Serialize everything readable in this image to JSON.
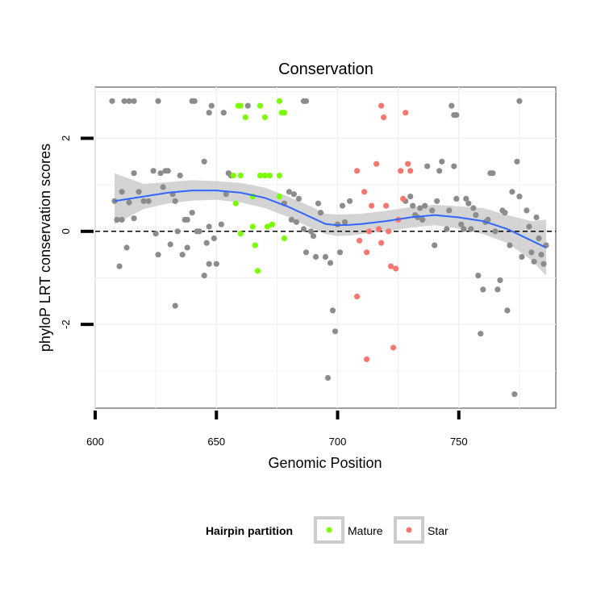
{
  "chart_data": {
    "type": "scatter",
    "title": "Conservation",
    "xlabel": "Genomic Position",
    "ylabel": "phyloP LRT conservation scores",
    "xlim": [
      600,
      790
    ],
    "ylim": [
      -3.8,
      3.1
    ],
    "x_ticks": [
      600,
      650,
      700,
      750
    ],
    "y_ticks": [
      -2,
      0,
      2
    ],
    "x_tick_labels": [
      "600",
      "650",
      "700",
      "750"
    ],
    "y_tick_labels": [
      "-2",
      "0",
      "2"
    ],
    "reference_line": 0,
    "grid": true,
    "legend": {
      "title": "Hairpin partition",
      "position": "bottom",
      "entries": [
        {
          "label": "Mature",
          "color": "#7CFC00"
        },
        {
          "label": "Star",
          "color": "#F8766D"
        }
      ]
    },
    "colors": {
      "other": "#8C8C8C",
      "Mature": "#7CFC00",
      "Star": "#F8766D",
      "smooth": "#3366FF",
      "band": "#CCCCCC"
    },
    "series": [
      {
        "name": "Other",
        "color": "#8C8C8C",
        "points": [
          [
            607,
            2.8
          ],
          [
            612,
            2.8
          ],
          [
            614,
            2.8
          ],
          [
            616,
            2.8
          ],
          [
            626,
            2.8
          ],
          [
            640,
            2.8
          ],
          [
            641,
            2.8
          ],
          [
            686,
            2.8
          ],
          [
            687,
            2.8
          ],
          [
            747,
            2.7
          ],
          [
            775,
            2.8
          ],
          [
            647,
            2.55
          ],
          [
            653,
            2.55
          ],
          [
            648,
            2.7
          ],
          [
            663,
            2.7
          ],
          [
            748,
            2.5
          ],
          [
            749,
            2.5
          ],
          [
            608,
            0.65
          ],
          [
            609,
            0.25
          ],
          [
            611,
            0.25
          ],
          [
            611,
            0.85
          ],
          [
            613,
            -0.35
          ],
          [
            614,
            0.62
          ],
          [
            616,
            0.28
          ],
          [
            616,
            1.25
          ],
          [
            618,
            0.85
          ],
          [
            620,
            0.65
          ],
          [
            622,
            0.65
          ],
          [
            624,
            1.3
          ],
          [
            625,
            -0.05
          ],
          [
            626,
            -0.5
          ],
          [
            627,
            1.25
          ],
          [
            628,
            0.95
          ],
          [
            629,
            1.3
          ],
          [
            630,
            1.3
          ],
          [
            631,
            -0.28
          ],
          [
            632,
            0.8
          ],
          [
            633,
            0.65
          ],
          [
            634,
            0.0
          ],
          [
            635,
            1.2
          ],
          [
            636,
            -0.5
          ],
          [
            637,
            0.25
          ],
          [
            638,
            0.25
          ],
          [
            638,
            -0.35
          ],
          [
            640,
            0.4
          ],
          [
            642,
            0.0
          ],
          [
            643,
            0.0
          ],
          [
            645,
            1.5
          ],
          [
            646,
            -0.25
          ],
          [
            647,
            0.1
          ],
          [
            647,
            -0.7
          ],
          [
            649,
            -0.15
          ],
          [
            650,
            -0.7
          ],
          [
            652,
            0.15
          ],
          [
            654,
            0.8
          ],
          [
            655,
            1.25
          ],
          [
            656,
            1.2
          ],
          [
            610,
            -0.75
          ],
          [
            633,
            -1.6
          ],
          [
            645,
            -0.95
          ],
          [
            678,
            0.6
          ],
          [
            680,
            0.85
          ],
          [
            681,
            0.25
          ],
          [
            682,
            0.8
          ],
          [
            683,
            0.2
          ],
          [
            684,
            0.7
          ],
          [
            686,
            0.05
          ],
          [
            687,
            -0.45
          ],
          [
            689,
            0.0
          ],
          [
            690,
            -0.1
          ],
          [
            691,
            -0.55
          ],
          [
            692,
            0.6
          ],
          [
            693,
            0.4
          ],
          [
            695,
            -0.55
          ],
          [
            697,
            -0.68
          ],
          [
            698,
            -1.7
          ],
          [
            699,
            -2.15
          ],
          [
            696,
            -3.15
          ],
          [
            700,
            0.15
          ],
          [
            701,
            -0.45
          ],
          [
            702,
            0.55
          ],
          [
            703,
            0.2
          ],
          [
            705,
            0.65
          ],
          [
            728,
            0.65
          ],
          [
            730,
            0.75
          ],
          [
            731,
            0.55
          ],
          [
            732,
            0.35
          ],
          [
            733,
            0.3
          ],
          [
            734,
            0.5
          ],
          [
            735,
            0.25
          ],
          [
            736,
            0.55
          ],
          [
            737,
            1.4
          ],
          [
            739,
            0.45
          ],
          [
            740,
            -0.3
          ],
          [
            741,
            0.65
          ],
          [
            742,
            1.3
          ],
          [
            743,
            1.5
          ],
          [
            745,
            0.05
          ],
          [
            746,
            0.45
          ],
          [
            748,
            1.4
          ],
          [
            749,
            0.7
          ],
          [
            751,
            0.15
          ],
          [
            752,
            0.05
          ],
          [
            753,
            0.7
          ],
          [
            754,
            0.6
          ],
          [
            755,
            0.05
          ],
          [
            756,
            0.5
          ],
          [
            757,
            0.35
          ],
          [
            758,
            -0.95
          ],
          [
            759,
            -2.2
          ],
          [
            760,
            -1.25
          ],
          [
            761,
            0.2
          ],
          [
            762,
            0.25
          ],
          [
            763,
            1.25
          ],
          [
            764,
            1.25
          ],
          [
            765,
            0.0
          ],
          [
            766,
            -1.25
          ],
          [
            767,
            -1.05
          ],
          [
            768,
            0.45
          ],
          [
            769,
            0.4
          ],
          [
            770,
            -1.7
          ],
          [
            771,
            -0.3
          ],
          [
            772,
            0.85
          ],
          [
            773,
            -3.5
          ],
          [
            774,
            1.5
          ],
          [
            775,
            0.75
          ],
          [
            776,
            -0.55
          ],
          [
            778,
            0.45
          ],
          [
            779,
            0.1
          ],
          [
            780,
            -0.45
          ],
          [
            781,
            -0.65
          ],
          [
            782,
            0.3
          ],
          [
            783,
            -0.15
          ],
          [
            784,
            -0.5
          ],
          [
            785,
            -0.7
          ],
          [
            786,
            -0.3
          ]
        ]
      },
      {
        "name": "Mature",
        "color": "#7CFC00",
        "points": [
          [
            659,
            2.7
          ],
          [
            660,
            2.7
          ],
          [
            668,
            2.7
          ],
          [
            676,
            2.8
          ],
          [
            662,
            2.45
          ],
          [
            670,
            2.45
          ],
          [
            677,
            2.55
          ],
          [
            678,
            2.55
          ],
          [
            657,
            1.2
          ],
          [
            660,
            1.2
          ],
          [
            668,
            1.2
          ],
          [
            670,
            1.2
          ],
          [
            672,
            1.2
          ],
          [
            676,
            1.2
          ],
          [
            665,
            0.75
          ],
          [
            676,
            0.75
          ],
          [
            658,
            0.6
          ],
          [
            665,
            0.1
          ],
          [
            671,
            0.1
          ],
          [
            673,
            0.15
          ],
          [
            660,
            -0.05
          ],
          [
            666,
            -0.3
          ],
          [
            678,
            -0.15
          ],
          [
            667,
            -0.85
          ]
        ]
      },
      {
        "name": "Star",
        "color": "#F8766D",
        "points": [
          [
            718,
            2.7
          ],
          [
            719,
            2.45
          ],
          [
            728,
            2.55
          ],
          [
            708,
            1.3
          ],
          [
            716,
            1.45
          ],
          [
            726,
            1.3
          ],
          [
            729,
            1.45
          ],
          [
            730,
            1.3
          ],
          [
            711,
            0.85
          ],
          [
            714,
            0.55
          ],
          [
            720,
            0.55
          ],
          [
            727,
            0.7
          ],
          [
            713,
            0.0
          ],
          [
            717,
            0.05
          ],
          [
            721,
            0.0
          ],
          [
            725,
            0.25
          ],
          [
            709,
            -0.2
          ],
          [
            712,
            -0.45
          ],
          [
            718,
            -0.25
          ],
          [
            722,
            -0.75
          ],
          [
            724,
            -0.8
          ],
          [
            708,
            -1.4
          ],
          [
            712,
            -2.75
          ],
          [
            723,
            -2.5
          ]
        ]
      }
    ],
    "smooth": {
      "x": [
        608,
        620,
        630,
        640,
        650,
        660,
        670,
        680,
        690,
        695,
        700,
        705,
        710,
        720,
        730,
        740,
        750,
        760,
        770,
        780,
        786
      ],
      "y": [
        0.65,
        0.75,
        0.83,
        0.88,
        0.88,
        0.83,
        0.72,
        0.52,
        0.28,
        0.16,
        0.13,
        0.14,
        0.16,
        0.22,
        0.3,
        0.35,
        0.3,
        0.22,
        0.05,
        -0.2,
        -0.35
      ],
      "lower": [
        0.15,
        0.48,
        0.6,
        0.66,
        0.68,
        0.62,
        0.5,
        0.3,
        0.05,
        -0.06,
        -0.1,
        -0.09,
        -0.06,
        0.0,
        0.08,
        0.13,
        0.06,
        -0.06,
        -0.25,
        -0.62,
        -0.95
      ],
      "upper": [
        1.25,
        1.02,
        1.06,
        1.1,
        1.08,
        1.04,
        0.94,
        0.74,
        0.51,
        0.38,
        0.36,
        0.37,
        0.38,
        0.44,
        0.52,
        0.57,
        0.54,
        0.5,
        0.35,
        0.22,
        0.25
      ]
    }
  }
}
